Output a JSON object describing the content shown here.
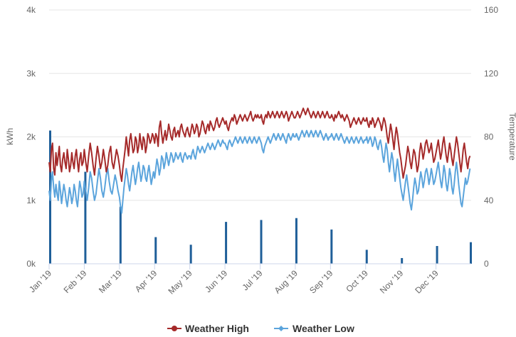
{
  "chart_data": {
    "type": "line",
    "title": "",
    "y_left": {
      "label": "kWh",
      "ticks": [
        "0k",
        "1k",
        "2k",
        "3k",
        "4k"
      ],
      "range": [
        0,
        4000
      ]
    },
    "y_right": {
      "label": "Temperature",
      "ticks": [
        "0",
        "40",
        "80",
        "120",
        "160"
      ],
      "range": [
        0,
        160
      ]
    },
    "x_ticks": [
      "Jan '19",
      "Feb '19",
      "Mar '19",
      "Apr '19",
      "May '19",
      "Jun '19",
      "Jul '19",
      "Aug '19",
      "Sep '19",
      "Oct '19",
      "Nov '19",
      "Dec '19"
    ],
    "grid": true,
    "legend_position": "bottom-center",
    "colors": {
      "high": "#a52a2a",
      "low": "#5ba4dc",
      "bars": "#1f5f99",
      "grid": "#e6e6e6"
    },
    "series": [
      {
        "name": "Weather High",
        "axis": "right",
        "monthly_anchors": [
          {
            "month": "Jan '19",
            "values": [
              64,
              58,
              72,
              76,
              60,
              56,
              70,
              62,
              68,
              74,
              62,
              58,
              66,
              70,
              64,
              60,
              72,
              66,
              58,
              62,
              70,
              64,
              60,
              68,
              72,
              64,
              58,
              66,
              70,
              62,
              64
            ]
          },
          {
            "month": "Feb '19",
            "values": [
              72,
              64,
              58,
              68,
              76,
              70,
              62,
              56,
              66,
              74,
              68,
              60,
              64,
              72,
              66,
              58,
              62,
              70,
              74,
              64,
              60,
              66,
              72,
              68
            ]
          },
          {
            "month": "Mar '19",
            "values": [
              62,
              56,
              52,
              60,
              66,
              72,
              80,
              74,
              68,
              78,
              82,
              76,
              70,
              72,
              80,
              78,
              70,
              74,
              82,
              76,
              72,
              80,
              78,
              70,
              74,
              82,
              80,
              76,
              78,
              82,
              80
            ]
          },
          {
            "month": "Apr '19",
            "values": [
              76,
              82,
              80,
              74,
              86,
              90,
              82,
              76,
              80,
              84,
              78,
              82,
              88,
              84,
              80,
              78,
              84,
              86,
              80,
              82,
              84,
              80,
              86,
              88,
              84,
              82,
              80,
              84,
              86,
              82
            ]
          },
          {
            "month": "May '19",
            "values": [
              80,
              84,
              88,
              86,
              82,
              84,
              88,
              86,
              80,
              82,
              86,
              90,
              88,
              84,
              82,
              86,
              88,
              84,
              90,
              88,
              86,
              84,
              86,
              90,
              92,
              88,
              86,
              88,
              90,
              92,
              90
            ]
          },
          {
            "month": "Jun '19",
            "values": [
              88,
              90,
              86,
              84,
              88,
              90,
              92,
              90,
              94,
              92,
              88,
              90,
              92,
              94,
              92,
              90,
              92,
              94,
              92,
              90,
              92,
              94,
              96,
              92,
              90,
              92,
              94,
              92,
              94,
              92
            ]
          },
          {
            "month": "Jul '19",
            "values": [
              92,
              94,
              90,
              88,
              92,
              94,
              92,
              96,
              94,
              92,
              94,
              96,
              94,
              92,
              94,
              96,
              94,
              92,
              94,
              96,
              94,
              92,
              94,
              96,
              94,
              90,
              92,
              94,
              96,
              94,
              92
            ]
          },
          {
            "month": "Aug '19",
            "values": [
              92,
              94,
              96,
              94,
              92,
              94,
              96,
              98,
              96,
              94,
              96,
              98,
              96,
              94,
              92,
              94,
              96,
              94,
              92,
              94,
              96,
              94,
              92,
              94,
              96,
              94,
              92,
              94,
              96,
              94,
              92
            ]
          },
          {
            "month": "Sep '19",
            "values": [
              92,
              94,
              92,
              90,
              94,
              92,
              94,
              96,
              94,
              92,
              94,
              92,
              90,
              92,
              94,
              92,
              90,
              86,
              88,
              90,
              92,
              90,
              88,
              90,
              92,
              90,
              88,
              90,
              92,
              90
            ]
          },
          {
            "month": "Oct '19",
            "values": [
              90,
              92,
              88,
              86,
              90,
              88,
              92,
              90,
              86,
              88,
              90,
              92,
              90,
              88,
              84,
              88,
              92,
              90,
              86,
              80,
              76,
              82,
              88,
              84,
              78,
              72,
              80,
              86,
              82,
              76,
              70
            ]
          },
          {
            "month": "Nov '19",
            "values": [
              66,
              60,
              54,
              58,
              62,
              68,
              74,
              70,
              64,
              60,
              66,
              72,
              70,
              64,
              58,
              62,
              70,
              76,
              72,
              66,
              70,
              76,
              78,
              74,
              70,
              72,
              76,
              70,
              64,
              66
            ]
          },
          {
            "month": "Dec '19",
            "values": [
              70,
              74,
              78,
              72,
              66,
              70,
              76,
              80,
              74,
              68,
              64,
              70,
              76,
              72,
              66,
              62,
              68,
              74,
              80,
              76,
              70,
              64,
              58,
              64,
              72,
              76,
              70,
              64,
              60,
              66,
              68
            ]
          }
        ]
      },
      {
        "name": "Weather Low",
        "axis": "right",
        "monthly_anchors": [
          {
            "month": "Jan '19",
            "values": [
              46,
              40,
              52,
              58,
              48,
              42,
              50,
              44,
              40,
              52,
              46,
              38,
              44,
              50,
              46,
              40,
              36,
              42,
              48,
              44,
              38,
              42,
              50,
              46,
              40,
              36,
              44,
              52,
              48,
              42,
              44
            ]
          },
          {
            "month": "Feb '19",
            "values": [
              52,
              46,
              40,
              48,
              58,
              54,
              46,
              40,
              44,
              52,
              60,
              54,
              46,
              42,
              48,
              56,
              60,
              52,
              46,
              44,
              50,
              56,
              52,
              46
            ]
          },
          {
            "month": "Mar '19",
            "values": [
              42,
              36,
              32,
              40,
              48,
              54,
              60,
              56,
              50,
              46,
              52,
              58,
              62,
              56,
              50,
              54,
              60,
              64,
              58,
              52,
              56,
              62,
              60,
              54,
              52,
              58,
              62,
              56,
              50,
              54,
              58
            ]
          },
          {
            "month": "Apr '19",
            "values": [
              54,
              60,
              66,
              62,
              56,
              60,
              68,
              66,
              60,
              64,
              70,
              66,
              62,
              66,
              70,
              68,
              64,
              66,
              70,
              68,
              66,
              68,
              70,
              66,
              64,
              68,
              70,
              68,
              66,
              68
            ]
          },
          {
            "month": "May '19",
            "values": [
              68,
              66,
              70,
              72,
              68,
              66,
              70,
              74,
              72,
              70,
              72,
              74,
              72,
              70,
              72,
              74,
              76,
              74,
              72,
              74,
              76,
              74,
              72,
              74,
              76,
              78,
              76,
              74,
              76,
              78,
              76
            ]
          },
          {
            "month": "Jun '19",
            "values": [
              76,
              74,
              72,
              76,
              78,
              76,
              74,
              76,
              78,
              80,
              78,
              76,
              78,
              80,
              78,
              76,
              78,
              80,
              78,
              76,
              78,
              80,
              78,
              76,
              78,
              80,
              78,
              76,
              78,
              80
            ]
          },
          {
            "month": "Jul '19",
            "values": [
              78,
              76,
              72,
              70,
              74,
              76,
              78,
              80,
              78,
              76,
              78,
              80,
              82,
              80,
              78,
              80,
              82,
              80,
              78,
              80,
              82,
              80,
              78,
              76,
              80,
              82,
              80,
              78,
              80,
              82,
              80
            ]
          },
          {
            "month": "Aug '19",
            "values": [
              80,
              82,
              80,
              78,
              80,
              82,
              84,
              82,
              80,
              82,
              84,
              82,
              80,
              82,
              84,
              82,
              80,
              82,
              84,
              82,
              80,
              82,
              84,
              82,
              80,
              78,
              80,
              82,
              80,
              78,
              80
            ]
          },
          {
            "month": "Sep '19",
            "values": [
              80,
              82,
              80,
              78,
              80,
              82,
              80,
              78,
              80,
              82,
              80,
              78,
              76,
              78,
              80,
              78,
              76,
              78,
              80,
              78,
              76,
              78,
              80,
              78,
              76,
              78,
              80,
              78,
              76,
              78
            ]
          },
          {
            "month": "Oct '19",
            "values": [
              78,
              80,
              76,
              78,
              80,
              78,
              74,
              76,
              80,
              78,
              74,
              72,
              76,
              78,
              74,
              68,
              64,
              70,
              76,
              72,
              64,
              58,
              64,
              70,
              66,
              58,
              52,
              60,
              66,
              60,
              54
            ]
          },
          {
            "month": "Nov '19",
            "values": [
              48,
              44,
              40,
              46,
              52,
              56,
              50,
              44,
              38,
              34,
              40,
              48,
              54,
              50,
              44,
              46,
              52,
              58,
              54,
              48,
              52,
              58,
              60,
              56,
              50,
              54,
              60,
              56,
              50,
              52
            ]
          },
          {
            "month": "Dec '19",
            "values": [
              56,
              60,
              64,
              58,
              52,
              48,
              54,
              62,
              58,
              50,
              46,
              52,
              60,
              56,
              48,
              44,
              50,
              58,
              64,
              58,
              50,
              44,
              38,
              36,
              42,
              48,
              54,
              50,
              52,
              56,
              60
            ]
          }
        ]
      },
      {
        "name": "kWh",
        "axis": "left",
        "type": "bar",
        "points": [
          {
            "month": "Jan '19",
            "value": 2100
          },
          {
            "month": "Feb '19",
            "value": 1450
          },
          {
            "month": "Mar '19",
            "value": 900
          },
          {
            "month": "Apr '19",
            "value": 420
          },
          {
            "month": "May '19",
            "value": 300
          },
          {
            "month": "Jun '19",
            "value": 660
          },
          {
            "month": "Jul '19",
            "value": 690
          },
          {
            "month": "Aug '19",
            "value": 720
          },
          {
            "month": "Sep '19",
            "value": 540
          },
          {
            "month": "Oct '19",
            "value": 220
          },
          {
            "month": "Nov '19",
            "value": 90
          },
          {
            "month": "Dec '19",
            "value": 280
          },
          {
            "month": "Dec '19 end",
            "value": 340
          }
        ]
      }
    ],
    "legend": [
      "Weather High",
      "Weather Low"
    ]
  }
}
